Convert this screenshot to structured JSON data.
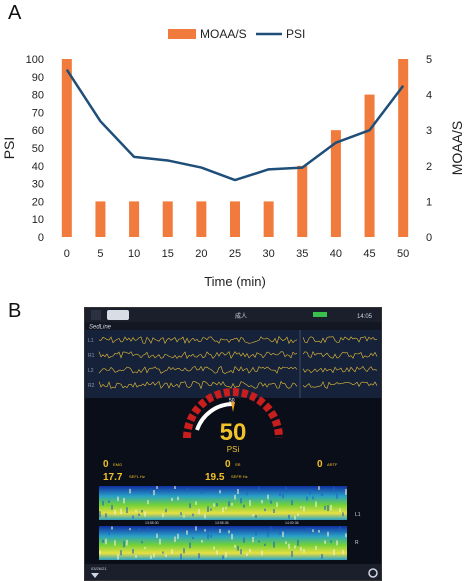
{
  "panel_a_label": "A",
  "panel_b_label": "B",
  "chart_data": {
    "type": "bar",
    "x": [
      0,
      5,
      10,
      15,
      20,
      25,
      30,
      35,
      40,
      45,
      50
    ],
    "xlabel": "Time (min)",
    "ylabel_left": "PSI",
    "ylabel_right": "MOAA/S",
    "ylim_left": [
      0,
      100
    ],
    "ylim_right": [
      0,
      5
    ],
    "yticks_left": [
      0,
      10,
      20,
      30,
      40,
      50,
      60,
      70,
      80,
      90,
      100
    ],
    "yticks_right": [
      0,
      1,
      2,
      3,
      4,
      5
    ],
    "legend_position": "top",
    "grid": false,
    "series": [
      {
        "name": "MOAA/S",
        "kind": "bar",
        "axis": "right",
        "color": "#f07b3c",
        "values": [
          5,
          1,
          1,
          1,
          1,
          1,
          1,
          2,
          3,
          4,
          5
        ]
      },
      {
        "name": "PSI",
        "kind": "line",
        "axis": "left",
        "color": "#1f4e79",
        "values": [
          94,
          65,
          45,
          43,
          39,
          32,
          38,
          39,
          53,
          60,
          85
        ]
      }
    ]
  },
  "monitor": {
    "status_time": "14:05",
    "status_mode": "成人",
    "module_label": "SedLine",
    "eeg_channels": [
      "L1",
      "R1",
      "L2",
      "R2"
    ],
    "psi_value": "50",
    "psi_label": "PSi",
    "gauge_top_label": "50",
    "emg_value": "0",
    "emg_label": "EMG",
    "sr_value": "0",
    "sr_label": "SR",
    "artf_value": "0",
    "artf_label": "ARTF",
    "sef_l_value": "17.7",
    "sef_l_label": "SEFL Hz",
    "sef_r_value": "19.5",
    "sef_r_label": "SEFR Hz",
    "dsa_label_l": "L1",
    "dsa_label_r": "R",
    "date": "03/26/21",
    "dsa_times": [
      "13:55:30",
      "13:55:36",
      "14:00:36"
    ]
  }
}
